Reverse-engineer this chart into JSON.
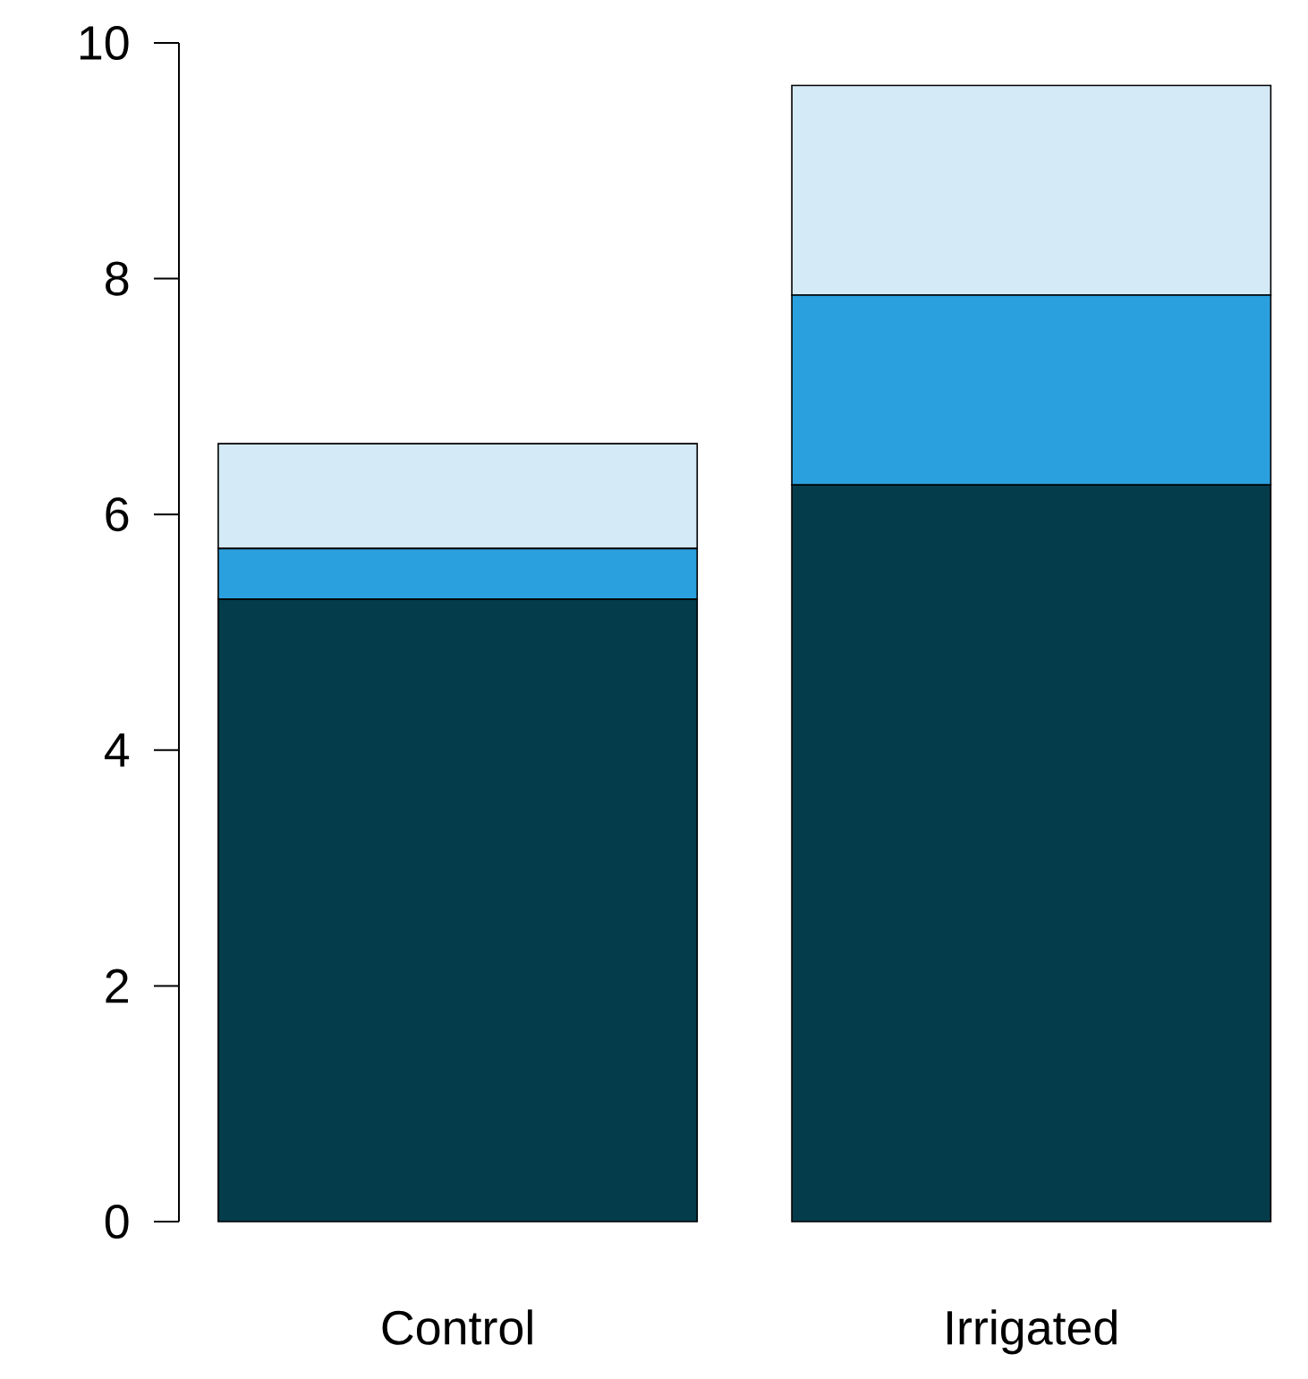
{
  "chart_data": {
    "type": "bar",
    "stacked": true,
    "categories": [
      "Control",
      "Irrigated"
    ],
    "series": [
      {
        "color": "#053c4b",
        "values": [
          5.28,
          6.25
        ]
      },
      {
        "color": "#2aa0de",
        "values": [
          0.43,
          1.61
        ]
      },
      {
        "color": "#d4eaf7",
        "values": [
          0.89,
          1.78
        ]
      }
    ],
    "ylim": [
      0,
      10
    ],
    "yticks": [
      0,
      2,
      4,
      6,
      8,
      10
    ]
  }
}
